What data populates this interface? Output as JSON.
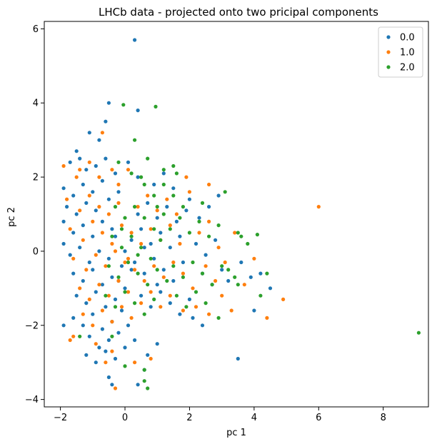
{
  "chart_data": {
    "type": "scatter",
    "title": "LHCb data - projected onto two pricipal components",
    "xlabel": "pc 1",
    "ylabel": "pc 2",
    "xlim": [
      -2.5,
      9.4
    ],
    "ylim": [
      -4.2,
      6.2
    ],
    "xticks": [
      -2,
      0,
      2,
      4,
      6,
      8
    ],
    "yticks": [
      -4,
      -2,
      0,
      2,
      4,
      6
    ],
    "legend_position": "top-right",
    "series": [
      {
        "name": "0.0",
        "color": "#1f77b4",
        "points": [
          [
            0.3,
            5.7
          ],
          [
            -0.5,
            4.0
          ],
          [
            0.4,
            3.8
          ],
          [
            -0.6,
            3.5
          ],
          [
            -1.1,
            3.2
          ],
          [
            -0.8,
            3.0
          ],
          [
            -1.5,
            2.7
          ],
          [
            -1.4,
            2.5
          ],
          [
            -1.7,
            2.4
          ],
          [
            -1.2,
            2.2
          ],
          [
            -0.9,
            2.3
          ],
          [
            -0.6,
            2.5
          ],
          [
            -0.3,
            2.1
          ],
          [
            -1.9,
            1.7
          ],
          [
            -1.6,
            1.5
          ],
          [
            -1.3,
            1.8
          ],
          [
            -1.0,
            1.6
          ],
          [
            -0.7,
            1.9
          ],
          [
            -1.8,
            1.2
          ],
          [
            -1.5,
            1.0
          ],
          [
            -1.2,
            1.3
          ],
          [
            -0.9,
            1.1
          ],
          [
            -0.5,
            1.4
          ],
          [
            -0.2,
            1.6
          ],
          [
            -1.9,
            0.8
          ],
          [
            -1.6,
            0.5
          ],
          [
            -1.3,
            0.7
          ],
          [
            -1.0,
            0.4
          ],
          [
            -0.7,
            0.8
          ],
          [
            -0.4,
            0.6
          ],
          [
            -1.9,
            0.2
          ],
          [
            -1.7,
            -0.1
          ],
          [
            -1.4,
            0.1
          ],
          [
            -1.1,
            -0.3
          ],
          [
            -0.8,
            0.0
          ],
          [
            -0.5,
            -0.2
          ],
          [
            -1.6,
            -0.6
          ],
          [
            -1.3,
            -0.8
          ],
          [
            -1.0,
            -0.5
          ],
          [
            -0.7,
            -0.9
          ],
          [
            -0.4,
            -0.7
          ],
          [
            -0.1,
            -0.4
          ],
          [
            -1.5,
            -1.2
          ],
          [
            -1.2,
            -1.4
          ],
          [
            -0.9,
            -1.1
          ],
          [
            -0.6,
            -1.5
          ],
          [
            -0.3,
            -1.3
          ],
          [
            0.0,
            -1.0
          ],
          [
            -1.6,
            -1.8
          ],
          [
            -1.3,
            -2.0
          ],
          [
            -1.0,
            -1.7
          ],
          [
            -0.7,
            -2.1
          ],
          [
            -0.4,
            -1.9
          ],
          [
            -0.1,
            -1.6
          ],
          [
            -1.9,
            -2.0
          ],
          [
            -1.1,
            -2.3
          ],
          [
            -0.8,
            -2.6
          ],
          [
            -0.5,
            -2.4
          ],
          [
            -0.2,
            -2.2
          ],
          [
            0.1,
            -2.0
          ],
          [
            -1.2,
            -2.8
          ],
          [
            -0.9,
            -3.0
          ],
          [
            -0.6,
            -2.7
          ],
          [
            -0.3,
            -2.9
          ],
          [
            0.0,
            -2.6
          ],
          [
            0.3,
            -2.4
          ],
          [
            -0.5,
            -3.4
          ],
          [
            -0.4,
            -3.6
          ],
          [
            0.4,
            -3.6
          ],
          [
            0.6,
            -3.2
          ],
          [
            0.7,
            -2.8
          ],
          [
            1.0,
            -2.5
          ],
          [
            0.2,
            0.3
          ],
          [
            0.5,
            0.6
          ],
          [
            0.8,
            0.2
          ],
          [
            1.1,
            0.5
          ],
          [
            1.4,
            0.1
          ],
          [
            1.7,
            0.4
          ],
          [
            0.3,
            -0.3
          ],
          [
            0.6,
            -0.6
          ],
          [
            0.9,
            -0.2
          ],
          [
            1.2,
            -0.5
          ],
          [
            1.5,
            -0.8
          ],
          [
            1.8,
            -0.3
          ],
          [
            0.4,
            1.0
          ],
          [
            0.7,
            1.3
          ],
          [
            1.0,
            0.9
          ],
          [
            1.3,
            1.2
          ],
          [
            1.6,
            0.8
          ],
          [
            1.9,
            1.1
          ],
          [
            0.5,
            -1.2
          ],
          [
            0.8,
            -1.5
          ],
          [
            1.1,
            -1.1
          ],
          [
            1.4,
            -1.4
          ],
          [
            1.7,
            -1.7
          ],
          [
            2.0,
            -1.3
          ],
          [
            2.2,
            0.2
          ],
          [
            2.5,
            -0.1
          ],
          [
            2.8,
            0.3
          ],
          [
            2.3,
            0.9
          ],
          [
            2.6,
            1.2
          ],
          [
            2.9,
            1.5
          ],
          [
            2.4,
            -0.6
          ],
          [
            2.7,
            -0.9
          ],
          [
            3.0,
            -0.5
          ],
          [
            2.1,
            -1.8
          ],
          [
            2.4,
            -2.0
          ],
          [
            3.5,
            -2.9
          ],
          [
            3.2,
            -0.8
          ],
          [
            3.6,
            -0.3
          ],
          [
            3.9,
            -0.7
          ],
          [
            4.2,
            -0.6
          ],
          [
            4.5,
            -1.0
          ],
          [
            4.0,
            -1.6
          ],
          [
            0.1,
            2.4
          ],
          [
            0.4,
            2.0
          ],
          [
            0.9,
            1.8
          ],
          [
            1.2,
            2.1
          ],
          [
            1.5,
            1.7
          ],
          [
            2.0,
            1.4
          ],
          [
            -0.2,
            -0.8
          ],
          [
            0.0,
            0.0
          ],
          [
            -0.3,
            0.4
          ],
          [
            0.2,
            -0.5
          ],
          [
            0.6,
            0.1
          ],
          [
            1.0,
            -0.9
          ]
        ]
      },
      {
        "name": "1.0",
        "color": "#ff7f0e",
        "points": [
          [
            -0.7,
            3.2
          ],
          [
            -1.9,
            2.3
          ],
          [
            -1.5,
            2.0
          ],
          [
            -1.1,
            2.4
          ],
          [
            -0.8,
            2.0
          ],
          [
            -0.4,
            2.2
          ],
          [
            -1.8,
            1.4
          ],
          [
            -1.4,
            1.1
          ],
          [
            -1.1,
            1.5
          ],
          [
            -0.8,
            1.2
          ],
          [
            -0.5,
            1.0
          ],
          [
            -0.2,
            1.3
          ],
          [
            -1.7,
            0.6
          ],
          [
            -1.3,
            0.3
          ],
          [
            -1.0,
            0.8
          ],
          [
            -0.7,
            0.5
          ],
          [
            -0.4,
            0.2
          ],
          [
            -0.1,
            0.7
          ],
          [
            -1.6,
            -0.2
          ],
          [
            -1.2,
            -0.5
          ],
          [
            -0.9,
            -0.1
          ],
          [
            -0.6,
            -0.4
          ],
          [
            -0.3,
            0.0
          ],
          [
            0.0,
            -0.3
          ],
          [
            -1.4,
            -1.0
          ],
          [
            -1.1,
            -1.3
          ],
          [
            -0.8,
            -0.9
          ],
          [
            -0.5,
            -1.2
          ],
          [
            -0.2,
            -0.8
          ],
          [
            0.1,
            -1.1
          ],
          [
            -1.3,
            -1.7
          ],
          [
            -1.0,
            -2.0
          ],
          [
            -0.7,
            -1.6
          ],
          [
            -0.4,
            -1.9
          ],
          [
            -0.1,
            -1.5
          ],
          [
            0.2,
            -1.8
          ],
          [
            -1.7,
            -2.4
          ],
          [
            -0.9,
            -2.5
          ],
          [
            -0.4,
            -2.7
          ],
          [
            -0.3,
            -3.7
          ],
          [
            0.3,
            -3.0
          ],
          [
            0.8,
            -2.9
          ],
          [
            0.2,
            0.5
          ],
          [
            0.5,
            0.2
          ],
          [
            0.8,
            0.6
          ],
          [
            1.1,
            0.3
          ],
          [
            1.4,
            0.7
          ],
          [
            1.7,
            0.2
          ],
          [
            0.3,
            -0.5
          ],
          [
            0.6,
            -0.8
          ],
          [
            0.9,
            -0.4
          ],
          [
            1.2,
            -0.7
          ],
          [
            1.5,
            -0.3
          ],
          [
            1.8,
            -0.6
          ],
          [
            0.4,
            1.2
          ],
          [
            0.7,
            1.5
          ],
          [
            1.0,
            1.1
          ],
          [
            1.3,
            1.4
          ],
          [
            1.6,
            1.0
          ],
          [
            2.0,
            1.6
          ],
          [
            0.5,
            -1.4
          ],
          [
            0.8,
            -1.1
          ],
          [
            1.1,
            -1.5
          ],
          [
            1.4,
            -1.2
          ],
          [
            1.8,
            -1.6
          ],
          [
            2.1,
            -1.0
          ],
          [
            2.3,
            0.5
          ],
          [
            2.6,
            0.8
          ],
          [
            2.9,
            0.1
          ],
          [
            2.5,
            -0.4
          ],
          [
            2.8,
            -0.8
          ],
          [
            3.1,
            -0.3
          ],
          [
            2.2,
            -1.5
          ],
          [
            2.6,
            -1.7
          ],
          [
            3.0,
            -1.2
          ],
          [
            3.4,
            0.5
          ],
          [
            3.7,
            -0.9
          ],
          [
            3.3,
            -1.6
          ],
          [
            6.0,
            1.2
          ],
          [
            4.9,
            -1.3
          ],
          [
            4.4,
            -1.8
          ],
          [
            4.0,
            -0.2
          ],
          [
            2.6,
            1.8
          ],
          [
            1.9,
            2.0
          ],
          [
            -0.2,
            1.8
          ],
          [
            0.1,
            2.2
          ],
          [
            -1.4,
            2.2
          ],
          [
            -1.6,
            -2.3
          ],
          [
            -0.6,
            -3.0
          ],
          [
            0.1,
            -0.2
          ]
        ]
      },
      {
        "name": "2.0",
        "color": "#2ca02c",
        "points": [
          [
            -0.05,
            3.95
          ],
          [
            0.95,
            3.9
          ],
          [
            0.3,
            3.0
          ],
          [
            0.7,
            2.5
          ],
          [
            1.5,
            2.3
          ],
          [
            1.6,
            2.1
          ],
          [
            0.2,
            2.1
          ],
          [
            0.6,
            1.8
          ],
          [
            0.9,
            1.5
          ],
          [
            1.2,
            1.8
          ],
          [
            1.5,
            1.5
          ],
          [
            1.8,
            1.2
          ],
          [
            -0.3,
            1.2
          ],
          [
            0.0,
            0.9
          ],
          [
            0.3,
            1.2
          ],
          [
            0.6,
            0.9
          ],
          [
            0.9,
            0.6
          ],
          [
            1.2,
            1.0
          ],
          [
            -0.4,
            0.4
          ],
          [
            -0.1,
            0.1
          ],
          [
            0.2,
            0.4
          ],
          [
            0.5,
            0.1
          ],
          [
            0.8,
            -0.2
          ],
          [
            1.1,
            0.3
          ],
          [
            -0.5,
            -0.4
          ],
          [
            -0.2,
            -0.7
          ],
          [
            0.1,
            -0.3
          ],
          [
            0.4,
            -0.6
          ],
          [
            0.7,
            -0.9
          ],
          [
            1.0,
            -0.5
          ],
          [
            -0.6,
            -1.2
          ],
          [
            -0.3,
            -1.5
          ],
          [
            0.0,
            -1.1
          ],
          [
            0.3,
            -1.4
          ],
          [
            0.6,
            -1.7
          ],
          [
            0.9,
            -1.3
          ],
          [
            -1.4,
            -2.3
          ],
          [
            -0.4,
            -2.3
          ],
          [
            0.0,
            -3.1
          ],
          [
            0.6,
            -3.5
          ],
          [
            0.7,
            -3.7
          ],
          [
            0.6,
            -3.2
          ],
          [
            1.4,
            0.6
          ],
          [
            1.7,
            0.9
          ],
          [
            2.0,
            0.5
          ],
          [
            2.3,
            0.8
          ],
          [
            2.6,
            0.4
          ],
          [
            2.9,
            0.7
          ],
          [
            1.5,
            -0.4
          ],
          [
            1.8,
            -0.7
          ],
          [
            2.1,
            -0.3
          ],
          [
            2.4,
            -0.6
          ],
          [
            2.7,
            -0.9
          ],
          [
            3.0,
            -0.4
          ],
          [
            1.6,
            -1.2
          ],
          [
            1.9,
            -1.5
          ],
          [
            2.2,
            -1.1
          ],
          [
            2.5,
            -1.4
          ],
          [
            2.9,
            -1.8
          ],
          [
            3.2,
            -0.5
          ],
          [
            3.1,
            1.6
          ],
          [
            2.4,
            1.3
          ],
          [
            3.6,
            0.4
          ],
          [
            3.4,
            -0.7
          ],
          [
            3.5,
            -0.9
          ],
          [
            4.1,
            0.45
          ],
          [
            4.2,
            -1.2
          ],
          [
            4.4,
            -0.6
          ],
          [
            3.8,
            0.2
          ],
          [
            3.5,
            0.5
          ],
          [
            9.1,
            -2.2
          ],
          [
            1.2,
            2.2
          ],
          [
            -0.2,
            2.4
          ],
          [
            0.5,
            2.0
          ],
          [
            1.0,
            1.2
          ],
          [
            -0.1,
            0.6
          ],
          [
            0.4,
            -0.1
          ],
          [
            1.3,
            -0.8
          ]
        ]
      }
    ]
  }
}
